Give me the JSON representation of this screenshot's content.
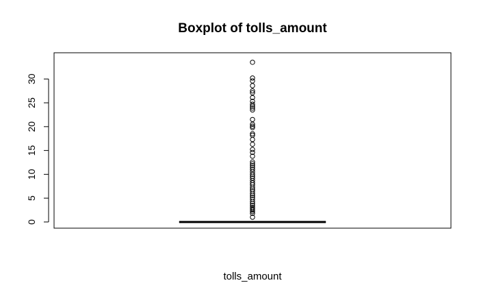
{
  "chart_data": {
    "type": "boxplot",
    "title": "Boxplot of tolls_amount",
    "xlabel": "tolls_amount",
    "ylabel": "",
    "ylim": [
      -1.3,
      35.5
    ],
    "yticks": [
      0,
      5,
      10,
      15,
      20,
      25,
      30
    ],
    "grid": false,
    "box": {
      "min": 0,
      "q1": 0,
      "median": 0,
      "q3": 0,
      "max": 0
    },
    "outliers": [
      1.0,
      1.8,
      2.2,
      2.5,
      2.8,
      3.1,
      3.5,
      3.9,
      4.3,
      4.8,
      5.2,
      5.6,
      6.0,
      6.5,
      6.9,
      7.3,
      7.8,
      8.2,
      8.7,
      9.2,
      9.6,
      10.0,
      10.5,
      11.0,
      11.4,
      11.8,
      12.2,
      12.6,
      13.8,
      14.6,
      15.2,
      16.3,
      17.3,
      18.2,
      18.5,
      19.8,
      20.1,
      20.5,
      21.5,
      23.5,
      23.9,
      24.3,
      24.7,
      25.3,
      26.1,
      27.1,
      27.5,
      28.6,
      29.6,
      30.2,
      33.5
    ]
  }
}
